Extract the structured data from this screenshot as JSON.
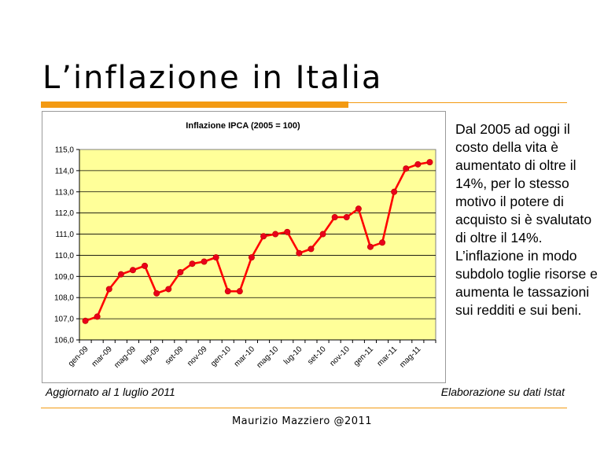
{
  "slide": {
    "title": "L’inflazione in Italia",
    "side_text": "Dal 2005 ad oggi il costo della vita è aumentato di oltre il 14%, per lo stesso motivo il potere di acquisto si è svalutato di oltre il 14%. L’inflazione in modo subdolo toglie risorse e aumenta le tassazioni sui redditi e sui beni.",
    "caption_left": "Aggiornato al 1 luglio 2011",
    "caption_right": "Elaborazione su dati Istat",
    "footer": "Maurizio Mazziero @2011"
  },
  "colors": {
    "accent": "#f39a12",
    "plot_background": "#ffff99",
    "series_line": "#ff0000",
    "series_marker": "#e8001c"
  },
  "chart_data": {
    "type": "line",
    "title": "Inflazione IPCA (2005 = 100)",
    "xlabel": "",
    "ylabel": "",
    "ylim": [
      106.0,
      115.0
    ],
    "yticks": [
      "106,0",
      "107,0",
      "108,0",
      "109,0",
      "110,0",
      "111,0",
      "112,0",
      "113,0",
      "114,0",
      "115,0"
    ],
    "grid": true,
    "legend": "none",
    "x": [
      "gen-09",
      "feb-09",
      "mar-09",
      "apr-09",
      "mag-09",
      "giu-09",
      "lug-09",
      "ago-09",
      "set-09",
      "ott-09",
      "nov-09",
      "dic-09",
      "gen-10",
      "feb-10",
      "mar-10",
      "apr-10",
      "mag-10",
      "giu-10",
      "lug-10",
      "ago-10",
      "set-10",
      "ott-10",
      "nov-10",
      "dic-10",
      "gen-11",
      "feb-11",
      "mar-11",
      "apr-11",
      "mag-11",
      "giu-11"
    ],
    "xtick_labels": [
      "gen-09",
      "mar-09",
      "mag-09",
      "lug-09",
      "set-09",
      "nov-09",
      "gen-10",
      "mar-10",
      "mag-10",
      "lug-10",
      "set-10",
      "nov-10",
      "gen-11",
      "mar-11",
      "mag-11"
    ],
    "series": [
      {
        "values": [
          106.9,
          107.1,
          108.4,
          109.1,
          109.3,
          109.5,
          108.2,
          108.4,
          109.2,
          109.6,
          109.7,
          109.9,
          108.3,
          108.3,
          109.9,
          110.9,
          111.0,
          111.1,
          110.1,
          110.3,
          111.0,
          111.8,
          111.8,
          112.2,
          110.4,
          110.6,
          113.0,
          114.1,
          114.3,
          114.4
        ]
      }
    ]
  }
}
